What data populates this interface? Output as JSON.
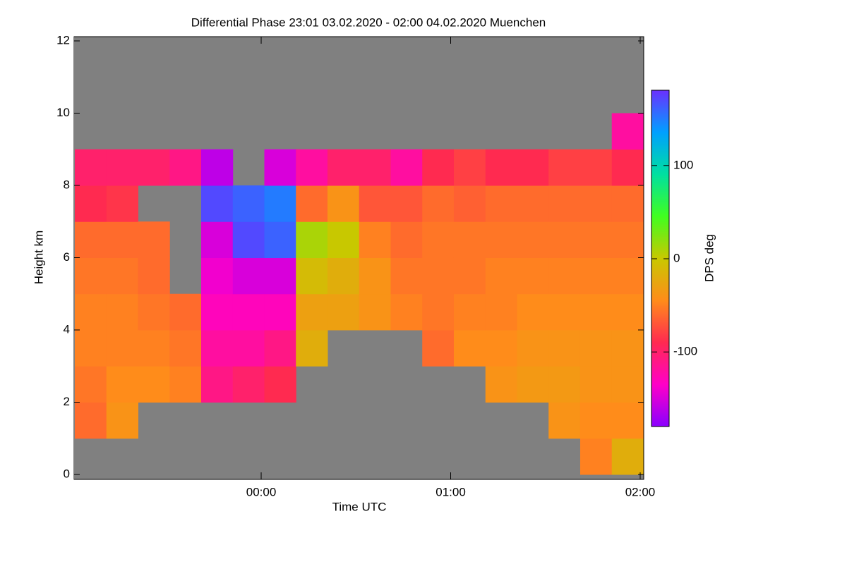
{
  "chart_data": {
    "type": "heatmap",
    "title": "Differential Phase   23:01 03.02.2020 - 02:00 04.02.2020 Muenchen",
    "x_label": "Time UTC",
    "y_label": "Height km",
    "colorbar_label": "DPS deg",
    "x": [
      1386,
      1396,
      1406,
      1416,
      1426,
      1436,
      1446,
      1456,
      1466,
      1476,
      1486,
      1496,
      1506,
      1516,
      1526,
      1536,
      1546,
      1556
    ],
    "y": [
      0.5,
      1.5,
      2.5,
      3.5,
      4.5,
      5.5,
      6.5,
      7.5,
      8.5,
      9.5,
      10.5,
      11.5
    ],
    "z": [
      [
        null,
        -60,
        -55,
        -50,
        -50,
        -55,
        -60,
        -90,
        -100,
        null,
        null,
        null
      ],
      [
        null,
        -40,
        -45,
        -50,
        -50,
        -55,
        -60,
        -85,
        -100,
        null,
        null,
        null
      ],
      [
        null,
        null,
        -45,
        -50,
        -55,
        -60,
        -60,
        null,
        -100,
        null,
        null,
        null
      ],
      [
        null,
        null,
        -50,
        -55,
        -60,
        null,
        null,
        null,
        -110,
        null,
        null,
        null
      ],
      [
        null,
        null,
        -110,
        -120,
        -130,
        -140,
        -150,
        170,
        -160,
        null,
        null,
        null
      ],
      [
        null,
        null,
        -100,
        -120,
        -130,
        -150,
        170,
        160,
        null,
        null,
        null,
        null
      ],
      [
        null,
        null,
        -90,
        -110,
        -130,
        -150,
        160,
        150,
        -150,
        null,
        null,
        null
      ],
      [
        null,
        null,
        null,
        -20,
        -30,
        -10,
        10,
        -60,
        -120,
        null,
        null,
        null
      ],
      [
        null,
        null,
        null,
        null,
        -30,
        -20,
        0,
        -40,
        -100,
        null,
        null,
        null
      ],
      [
        null,
        null,
        null,
        null,
        -40,
        -40,
        -50,
        -70,
        -100,
        null,
        null,
        null
      ],
      [
        null,
        null,
        null,
        null,
        -50,
        -55,
        -60,
        -70,
        -120,
        null,
        null,
        null
      ],
      [
        null,
        null,
        null,
        -60,
        -55,
        -55,
        -55,
        -60,
        -90,
        null,
        null,
        null
      ],
      [
        null,
        null,
        null,
        -45,
        -50,
        -55,
        -55,
        -65,
        -80,
        null,
        null,
        null
      ],
      [
        null,
        null,
        -40,
        -45,
        -50,
        -50,
        -55,
        -60,
        -90,
        null,
        null,
        null
      ],
      [
        null,
        null,
        -35,
        -40,
        -45,
        -50,
        -55,
        -60,
        -90,
        null,
        null,
        null
      ],
      [
        null,
        -40,
        -35,
        -40,
        -45,
        -50,
        -55,
        -60,
        -80,
        null,
        null,
        null
      ],
      [
        -50,
        -45,
        -40,
        -40,
        -45,
        -50,
        -55,
        -60,
        -80,
        null,
        null,
        null
      ],
      [
        -20,
        -45,
        -40,
        -40,
        -45,
        -50,
        -55,
        -60,
        -90,
        -120,
        null,
        null
      ]
    ],
    "xlim": [
      1381,
      1560
    ],
    "xticks": [
      {
        "value": 1440,
        "label": "00:00"
      },
      {
        "value": 1500,
        "label": "01:00"
      },
      {
        "value": 1560,
        "label": "02:00"
      }
    ],
    "ylim": [
      0,
      12
    ],
    "yticks": [
      0,
      2,
      4,
      6,
      8,
      10,
      12
    ],
    "clim": [
      -180,
      180
    ],
    "cticks": [
      -100,
      0,
      100
    ],
    "colormap": [
      "#8a00ff",
      "#ff00c8",
      "#ff2a50",
      "#ff8c1a",
      "#c8c800",
      "#40ff20",
      "#00e0a0",
      "#00a0ff",
      "#6a30ff"
    ],
    "nodata_color": "#808080"
  }
}
